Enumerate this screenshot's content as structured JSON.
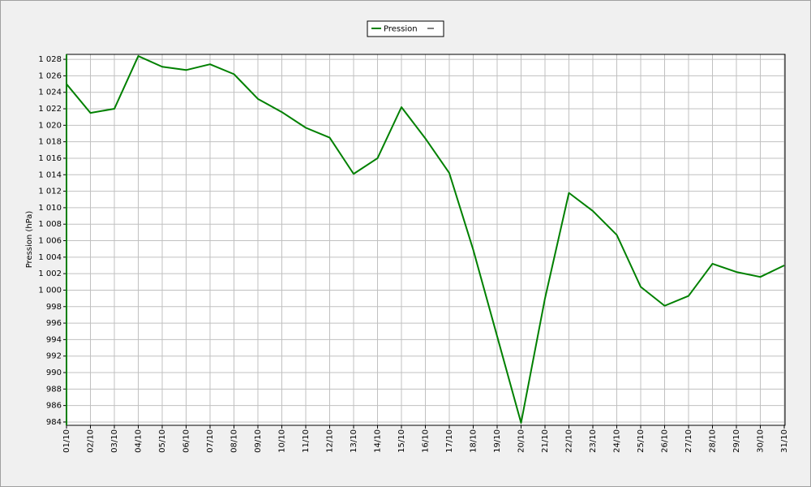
{
  "chart_data": {
    "type": "line",
    "y_label": "Pression (hPa)",
    "categories": [
      "01/10",
      "02/10",
      "03/10",
      "04/10",
      "05/10",
      "06/10",
      "07/10",
      "08/10",
      "09/10",
      "10/10",
      "11/10",
      "12/10",
      "13/10",
      "14/10",
      "15/10",
      "16/10",
      "17/10",
      "18/10",
      "19/10",
      "20/10",
      "21/10",
      "22/10",
      "23/10",
      "24/10",
      "25/10",
      "26/10",
      "27/10",
      "28/10",
      "29/10",
      "30/10",
      "31/10"
    ],
    "series": [
      {
        "name": "Pression",
        "color": "#008000",
        "values": [
          1025.0,
          1021.5,
          1022.0,
          1028.4,
          1027.1,
          1026.7,
          1027.4,
          1026.2,
          1023.2,
          1021.6,
          1019.7,
          1018.5,
          1014.1,
          1016.0,
          1022.2,
          1018.4,
          1014.2,
          1004.9,
          994.4,
          983.9,
          999.0,
          1011.8,
          1009.6,
          1006.7,
          1000.4,
          998.1,
          999.3,
          1003.2,
          1002.2,
          1001.6,
          1003.0
        ]
      }
    ],
    "ylim": [
      983.6,
      1028.6
    ],
    "yticks": [
      984,
      986,
      988,
      990,
      992,
      994,
      996,
      998,
      {
        "value": 1000,
        "label": "1 000"
      },
      {
        "value": 1002,
        "label": "1 002"
      },
      {
        "value": 1004,
        "label": "1 004"
      },
      {
        "value": 1006,
        "label": "1 006"
      },
      {
        "value": 1008,
        "label": "1 008"
      },
      {
        "value": 1010,
        "label": "1 010"
      },
      {
        "value": 1012,
        "label": "1 012"
      },
      {
        "value": 1014,
        "label": "1 014"
      },
      {
        "value": 1016,
        "label": "1 016"
      },
      {
        "value": 1018,
        "label": "1 018"
      },
      {
        "value": 1020,
        "label": "1 020"
      },
      {
        "value": 1022,
        "label": "1 022"
      },
      {
        "value": 1024,
        "label": "1 024"
      },
      {
        "value": 1026,
        "label": "1 026"
      },
      {
        "value": 1028,
        "label": "1 028"
      }
    ],
    "grid": true,
    "legend": "top"
  }
}
